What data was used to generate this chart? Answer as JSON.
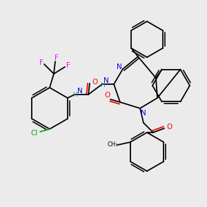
{
  "background_color": "#ebebeb",
  "atom_colors": {
    "N": "#0000ee",
    "O": "#ff0000",
    "F": "#ff00ff",
    "Cl": "#00aa00",
    "C": "#000000",
    "H": "#008888"
  },
  "figsize": [
    3.0,
    3.0
  ],
  "dpi": 100
}
